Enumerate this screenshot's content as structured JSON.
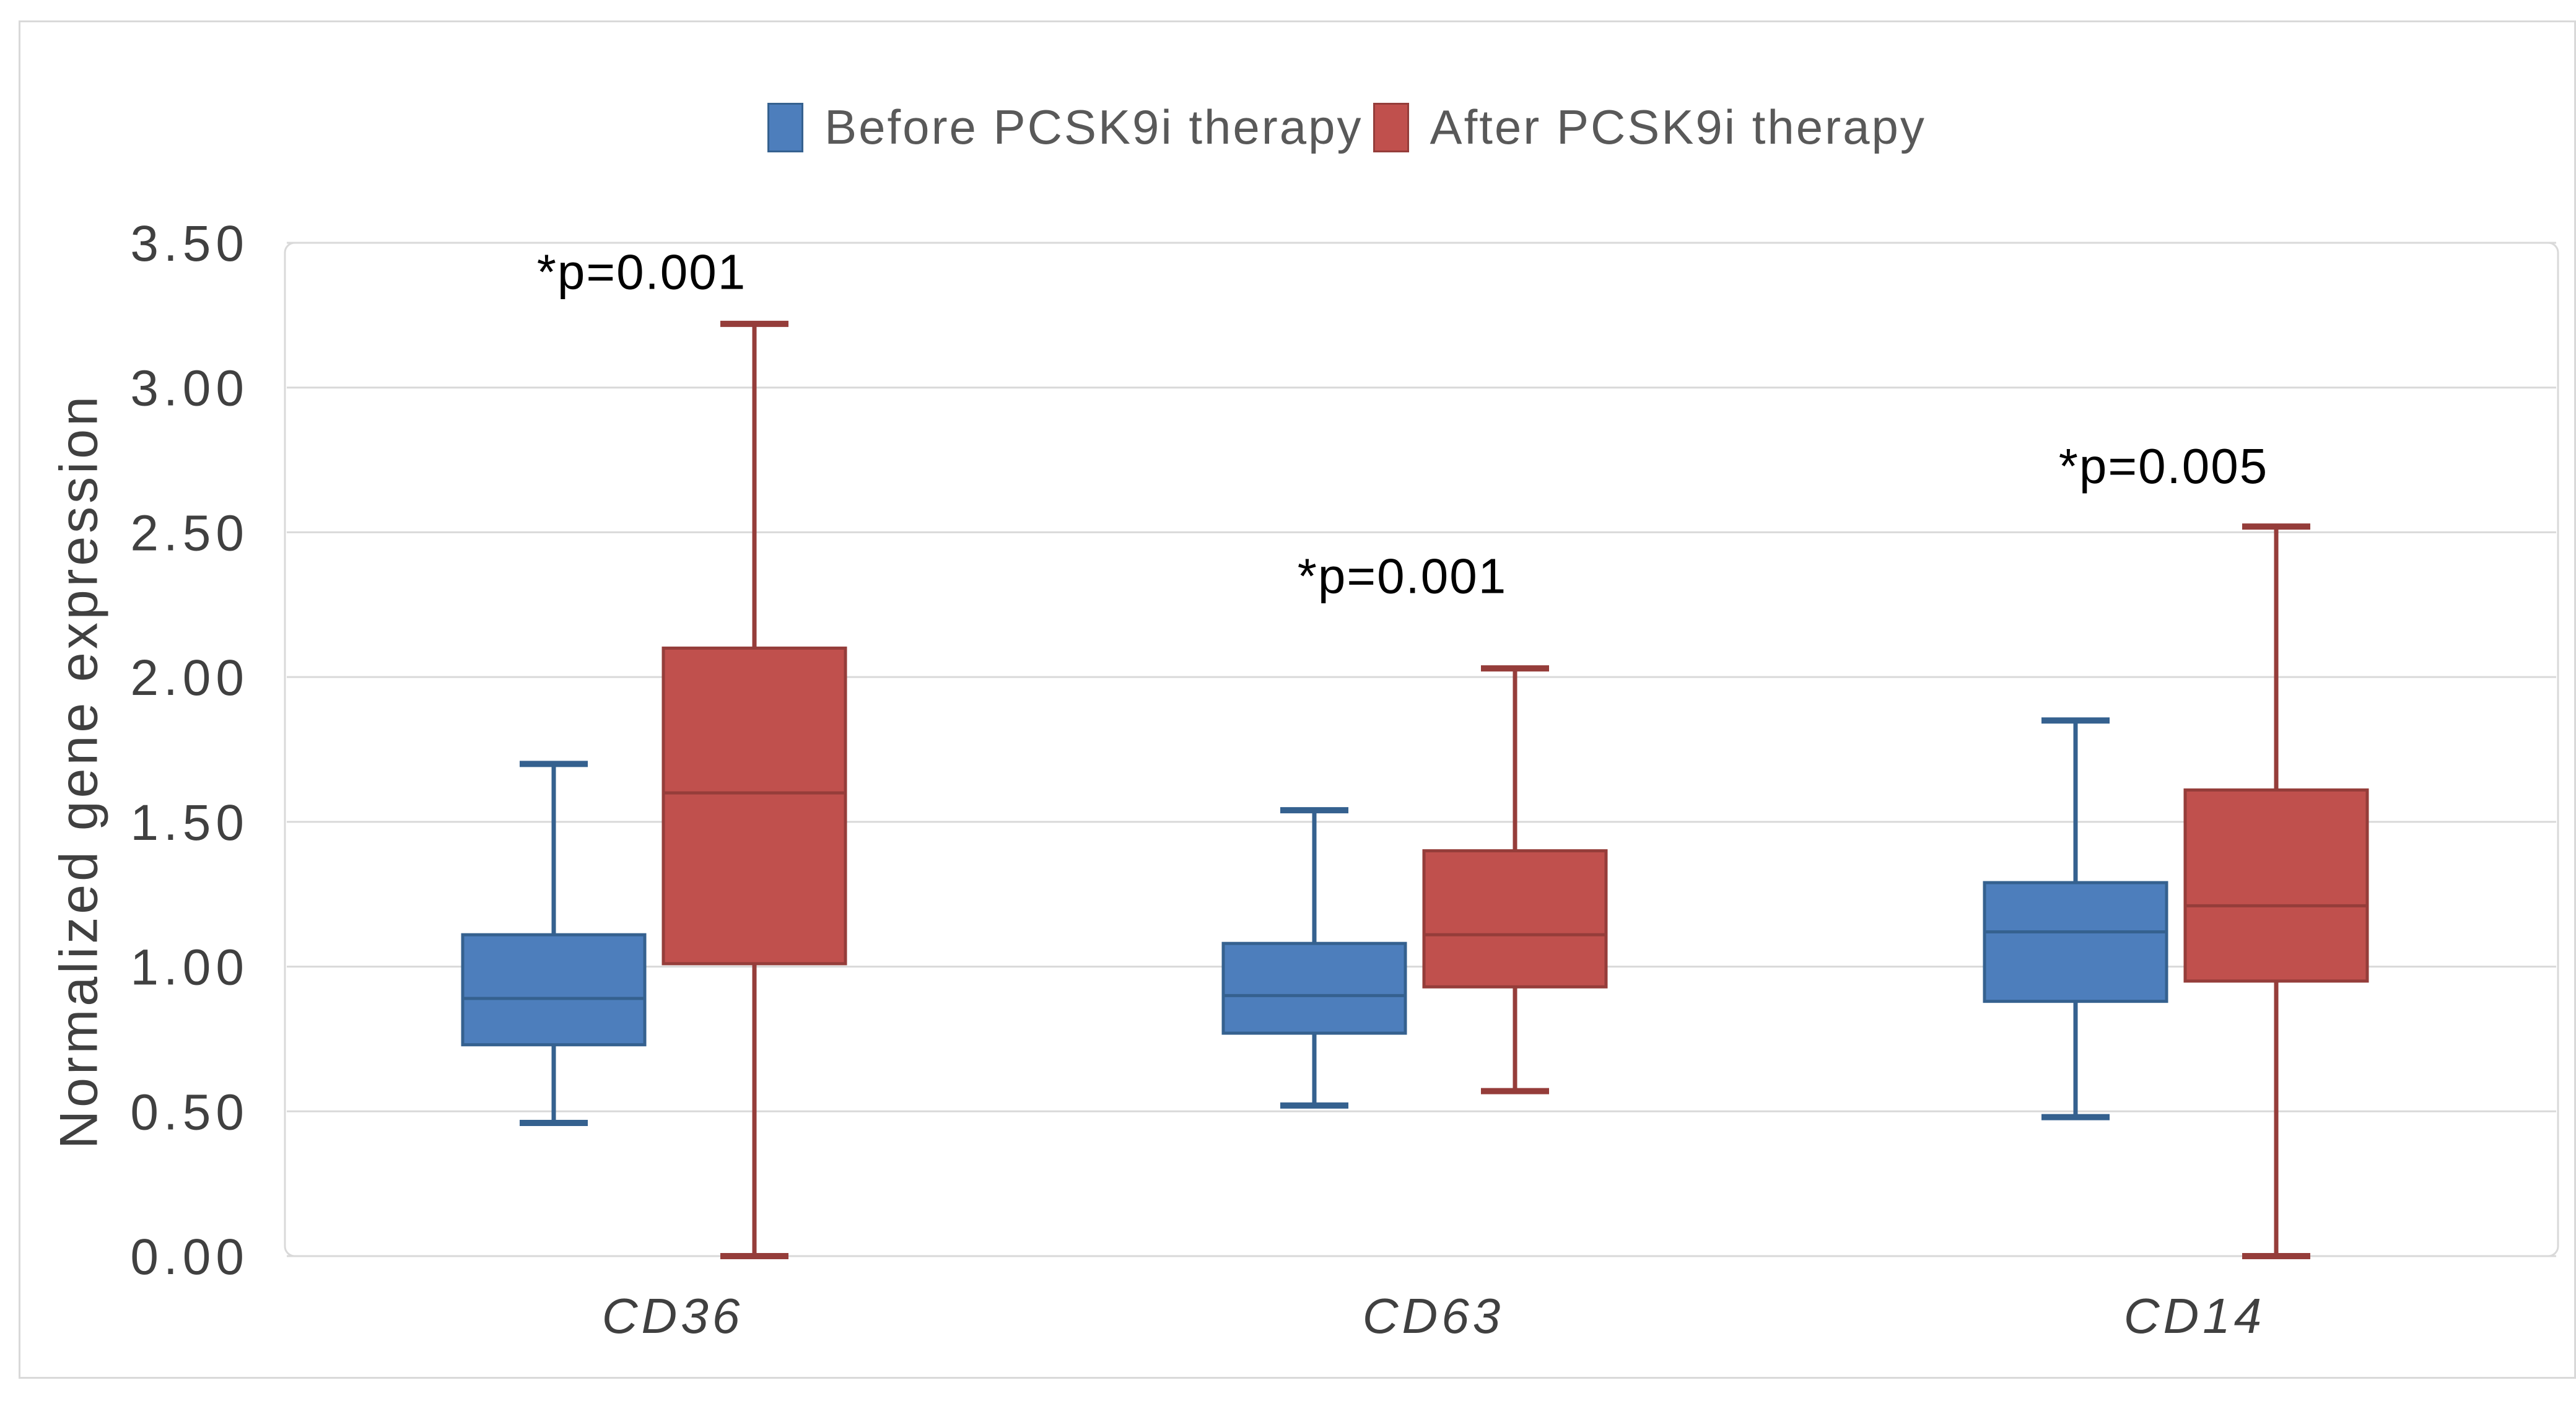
{
  "figure": {
    "background": "#ffffff",
    "frame_color": "#d9d9d9"
  },
  "chart_data": {
    "type": "boxplot",
    "title": "",
    "xlabel": "",
    "ylabel": "Normalized gene expression",
    "ylim": [
      0.0,
      3.5
    ],
    "ytick_step": 0.5,
    "ytick_labels": [
      "0.00",
      "0.50",
      "1.00",
      "1.50",
      "2.00",
      "2.50",
      "3.00",
      "3.50"
    ],
    "grid": true,
    "gridline_color": "#d9d9d9",
    "axis_text_color": "#404040",
    "annotation_color": "#000000",
    "legend_position": "top-center",
    "categories": [
      "CD36",
      "CD63",
      "CD14"
    ],
    "series": [
      {
        "name": "Before PCSK9i therapy",
        "fill": "#4d7ebc",
        "stroke": "#35618f",
        "boxes": [
          {
            "category": "CD36",
            "min": 0.46,
            "q1": 0.73,
            "median": 0.89,
            "q3": 1.11,
            "max": 1.7
          },
          {
            "category": "CD63",
            "min": 0.52,
            "q1": 0.77,
            "median": 0.9,
            "q3": 1.08,
            "max": 1.54
          },
          {
            "category": "CD14",
            "min": 0.48,
            "q1": 0.88,
            "median": 1.12,
            "q3": 1.29,
            "max": 1.85
          }
        ]
      },
      {
        "name": "After PCSK9i therapy",
        "fill": "#c0504d",
        "stroke": "#953d3a",
        "boxes": [
          {
            "category": "CD36",
            "min": 0.0,
            "q1": 1.01,
            "median": 1.6,
            "q3": 2.1,
            "max": 3.22
          },
          {
            "category": "CD63",
            "min": 0.57,
            "q1": 0.93,
            "median": 1.11,
            "q3": 1.4,
            "max": 2.03
          },
          {
            "category": "CD14",
            "min": 0.0,
            "q1": 0.95,
            "median": 1.21,
            "q3": 1.61,
            "max": 2.52
          }
        ]
      }
    ],
    "annotations": [
      {
        "label": "*p=0.001",
        "category": "CD36",
        "y": 3.4
      },
      {
        "label": "*p=0.001",
        "category": "CD63",
        "y": 2.35
      },
      {
        "label": "*p=0.005",
        "category": "CD14",
        "y": 2.73
      }
    ]
  }
}
